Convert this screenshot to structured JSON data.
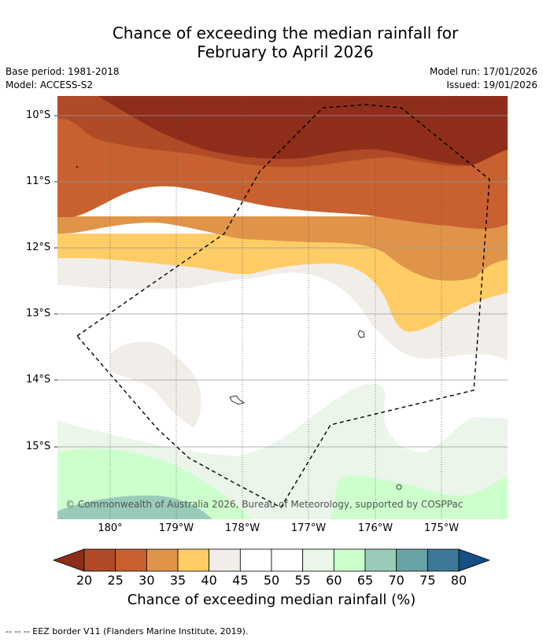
{
  "title_line1": "Chance of exceeding the median rainfall for",
  "title_line2": "February to April 2026",
  "base_period": "Base period: 1981-2018",
  "model": "Model: ACCESS-S2",
  "model_run": "Model run: 17/01/2026",
  "issued": "Issued: 19/01/2026",
  "lat_labels": [
    "10°S",
    "11°S",
    "12°S",
    "13°S",
    "14°S",
    "15°S"
  ],
  "lon_labels": [
    "180°",
    "179°W",
    "178°W",
    "177°W",
    "176°W",
    "175°W"
  ],
  "copyright": "© Commonwealth of Australia 2026, Bureau of Meteorology, supported by COSPPac",
  "colorbar": {
    "ticks": [
      "20",
      "25",
      "30",
      "35",
      "40",
      "45",
      "50",
      "55",
      "60",
      "65",
      "70",
      "75",
      "80"
    ],
    "label": "Chance of exceeding median rainfall (%)",
    "colors": [
      "#8e2e1a",
      "#b04a27",
      "#c8612f",
      "#e0944a",
      "#ffcc66",
      "#f1ede8",
      "#ffffff",
      "#ffffff",
      "#ebf5ea",
      "#ccffcc",
      "#99ccb8",
      "#6aa3a6",
      "#3e7896",
      "#174e85"
    ]
  },
  "footer": "--  --  -- EEZ border V11 (Flanders Marine Institute, 2019)."
}
